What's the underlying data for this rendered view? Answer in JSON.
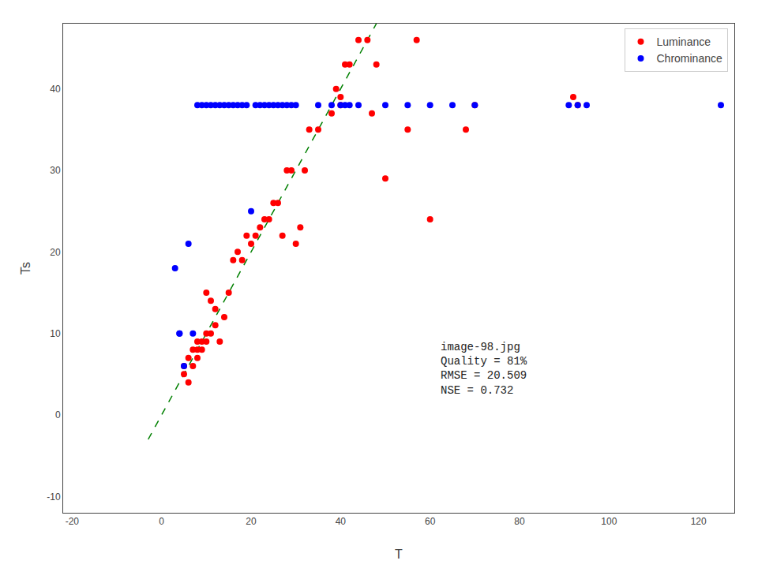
{
  "chart_data": {
    "type": "scatter",
    "xlabel": "T",
    "ylabel": "Ts",
    "xlim": [
      -22,
      128
    ],
    "ylim": [
      -12,
      48
    ],
    "xticks": [
      -20,
      0,
      20,
      40,
      60,
      80,
      100,
      120
    ],
    "yticks": [
      -10,
      0,
      10,
      20,
      30,
      40
    ],
    "grid": false,
    "legend": "upper right",
    "series": [
      {
        "name": "Luminance",
        "type": "scatter",
        "color": "#ff0000",
        "marker": "circle",
        "x": [
          5,
          5,
          6,
          6,
          7,
          7,
          8,
          8,
          8,
          9,
          9,
          10,
          10,
          10,
          11,
          11,
          12,
          12,
          13,
          14,
          15,
          16,
          17,
          18,
          19,
          20,
          21,
          22,
          23,
          24,
          25,
          26,
          27,
          28,
          29,
          30,
          31,
          32,
          33,
          35,
          38,
          39,
          40,
          40,
          41,
          42,
          44,
          46,
          47,
          48,
          50,
          55,
          57,
          60,
          68,
          70,
          92,
          93
        ],
        "values": [
          5,
          6,
          4,
          7,
          6,
          8,
          7,
          8,
          9,
          8,
          9,
          9,
          10,
          15,
          10,
          14,
          11,
          13,
          9,
          12,
          15,
          19,
          20,
          19,
          22,
          21,
          22,
          23,
          24,
          24,
          26,
          26,
          22,
          30,
          30,
          21,
          23,
          30,
          35,
          35,
          37,
          40,
          39,
          38,
          43,
          43,
          46,
          46,
          37,
          43,
          29,
          35,
          46,
          24,
          35,
          38,
          39,
          38
        ]
      },
      {
        "name": "Chrominance",
        "type": "scatter",
        "color": "#0000ff",
        "marker": "circle",
        "x": [
          3,
          4,
          4,
          5,
          6,
          7,
          8,
          9,
          10,
          11,
          12,
          13,
          14,
          15,
          16,
          17,
          18,
          19,
          20,
          21,
          22,
          23,
          24,
          25,
          26,
          27,
          28,
          29,
          30,
          35,
          38,
          40,
          41,
          42,
          44,
          50,
          55,
          60,
          65,
          70,
          91,
          93,
          95,
          125
        ],
        "values": [
          18,
          10,
          10,
          6,
          21,
          10,
          38,
          38,
          38,
          38,
          38,
          38,
          38,
          38,
          38,
          38,
          38,
          38,
          25,
          38,
          38,
          38,
          38,
          38,
          38,
          38,
          38,
          38,
          38,
          38,
          38,
          38,
          38,
          38,
          38,
          38,
          38,
          38,
          38,
          38,
          38,
          38,
          38,
          38
        ]
      },
      {
        "type": "line",
        "color": "#008000",
        "line_style": "dashed",
        "x": [
          -3,
          48
        ],
        "values": [
          -3,
          48
        ]
      }
    ],
    "annotations": [
      {
        "text": "image-98.jpg\nQuality = 81%\nRMSE = 20.509\nNSE = 0.732",
        "x": 62,
        "y": 2
      }
    ]
  }
}
